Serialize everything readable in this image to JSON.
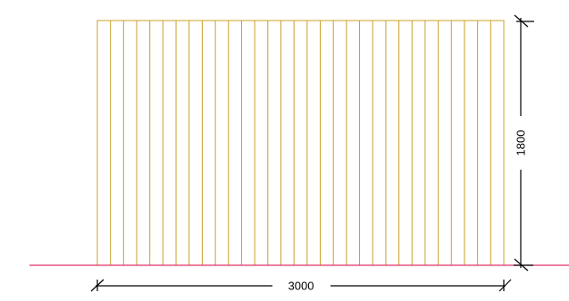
{
  "drawing": {
    "width_dimension": {
      "label": "3000",
      "value": 3000
    },
    "height_dimension": {
      "label": "1800",
      "value": 1800
    },
    "panel": {
      "slat_count": 31
    },
    "colors": {
      "background": "#ffffff",
      "ground_line": "#e0306a",
      "panel_stroke": "#c8a028",
      "dimension_line": "#000000",
      "dimension_text": "#000000"
    }
  }
}
